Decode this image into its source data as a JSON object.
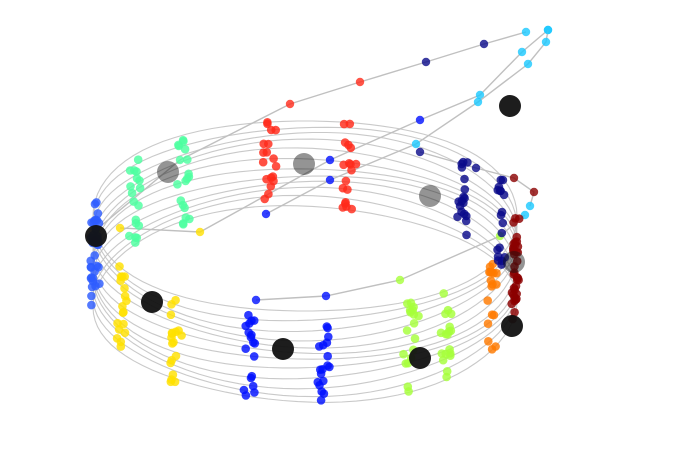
{
  "figure": {
    "description_free": true,
    "colors": {
      "background": "#ffffff",
      "trajectory": "#c0c0c0",
      "anchor_points": "#111111",
      "group_colors": [
        "#2d5cff",
        "#ffe000",
        "#0010ff",
        "#a6ff3a",
        "#ff7a00",
        "#8b0000",
        "#0a0a8a",
        "#ff2a1a",
        "#4dffa0",
        "#19c8ff"
      ]
    }
  }
}
